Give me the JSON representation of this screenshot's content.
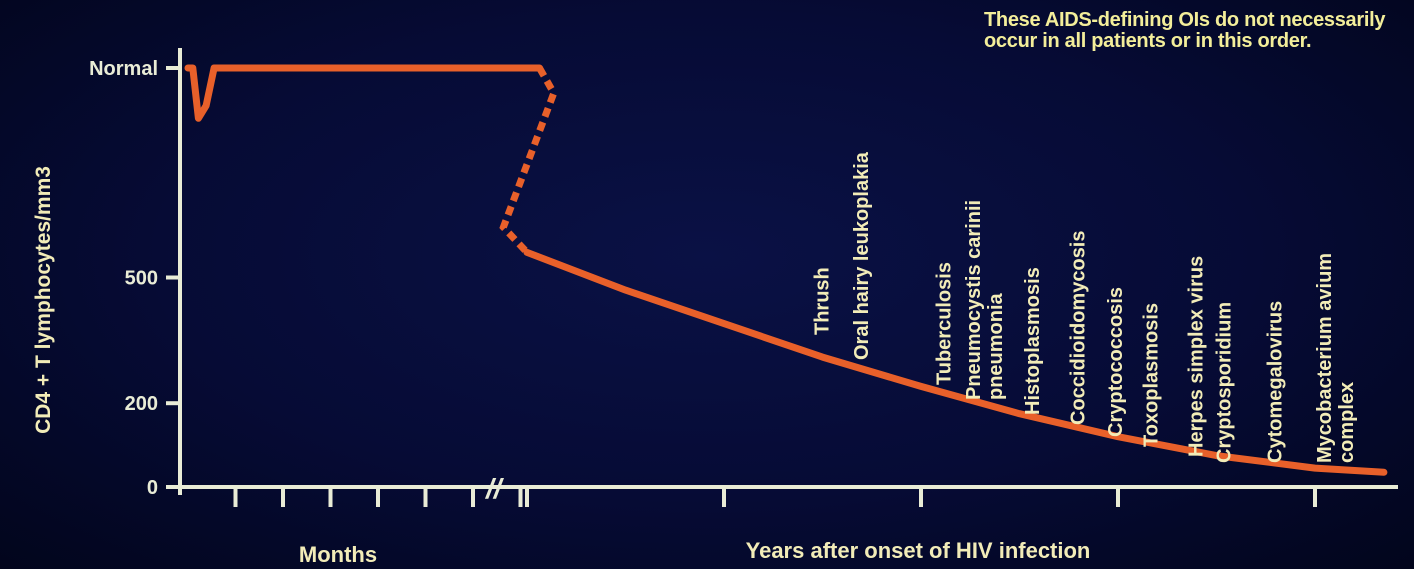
{
  "note": "These AIDS-defining OIs do not necessarily occur in all patients or in this order.",
  "colors": {
    "background": "#060b35",
    "axis": "#e9ecd6",
    "curve": "#e8602a",
    "text": "#f2ecb8"
  },
  "chart_data": {
    "type": "line",
    "title": "",
    "ylabel": "CD4 + T lymphocytes/mm3",
    "y_ticks": [
      {
        "label": "0",
        "value": 0
      },
      {
        "label": "200",
        "value": 200
      },
      {
        "label": "500",
        "value": 500
      },
      {
        "label": "Normal",
        "value": 1000
      }
    ],
    "ylim": [
      0,
      1000
    ],
    "axis_break": "//",
    "months_axis": {
      "label": "Months",
      "tick_count": 7
    },
    "years_axis": {
      "label": "Years after onset of HIV infection",
      "tick_count": 5
    },
    "curve": [
      {
        "segment": "months",
        "t": 0.0,
        "y": 1000
      },
      {
        "segment": "months",
        "t": 0.1,
        "y": 1000
      },
      {
        "segment": "months",
        "t": 0.22,
        "y": 880
      },
      {
        "segment": "months",
        "t": 0.38,
        "y": 910
      },
      {
        "segment": "months",
        "t": 0.55,
        "y": 1000
      },
      {
        "segment": "months",
        "t": 7.4,
        "y": 1000
      },
      {
        "segment": "months",
        "t": 7.7,
        "y": 940,
        "dashed": true
      },
      {
        "segment": "years",
        "t": -0.12,
        "y": 620,
        "dashed": true
      },
      {
        "segment": "years",
        "t": 0.0,
        "y": 560
      },
      {
        "segment": "years",
        "t": 0.5,
        "y": 470
      },
      {
        "segment": "years",
        "t": 1.0,
        "y": 390
      },
      {
        "segment": "years",
        "t": 1.5,
        "y": 310
      },
      {
        "segment": "years",
        "t": 2.0,
        "y": 240
      },
      {
        "segment": "years",
        "t": 2.5,
        "y": 175
      },
      {
        "segment": "years",
        "t": 3.0,
        "y": 120
      },
      {
        "segment": "years",
        "t": 3.5,
        "y": 75
      },
      {
        "segment": "years",
        "t": 4.0,
        "y": 45
      },
      {
        "segment": "years",
        "t": 4.35,
        "y": 35
      }
    ],
    "annotations": [
      {
        "lines": [
          "Thrush"
        ],
        "t": 1.53,
        "base": 335
      },
      {
        "lines": [
          "Oral hairy leukoplakia"
        ],
        "t": 1.73,
        "base": 360
      },
      {
        "lines": [
          "Tuberculosis"
        ],
        "t": 2.15,
        "base": 385
      },
      {
        "lines": [
          "Pneumocystis carinii",
          "pneumonia"
        ],
        "t": 2.3,
        "base": 400
      },
      {
        "lines": [
          "Histoplasmosis"
        ],
        "t": 2.6,
        "base": 415
      },
      {
        "lines": [
          "Coccidioidomycosis"
        ],
        "t": 2.83,
        "base": 425
      },
      {
        "lines": [
          "Cryptococcosis"
        ],
        "t": 3.02,
        "base": 437
      },
      {
        "lines": [
          "Toxoplasmosis"
        ],
        "t": 3.2,
        "base": 447
      },
      {
        "lines": [
          "Herpes simplex virus"
        ],
        "t": 3.43,
        "base": 457
      },
      {
        "lines": [
          "Cryptosporidium"
        ],
        "t": 3.57,
        "base": 463
      },
      {
        "lines": [
          "Cytomegalovirus"
        ],
        "t": 3.83,
        "base": 463
      },
      {
        "lines": [
          "Mycobacterium avium",
          "complex"
        ],
        "t": 4.08,
        "base": 463
      }
    ]
  }
}
